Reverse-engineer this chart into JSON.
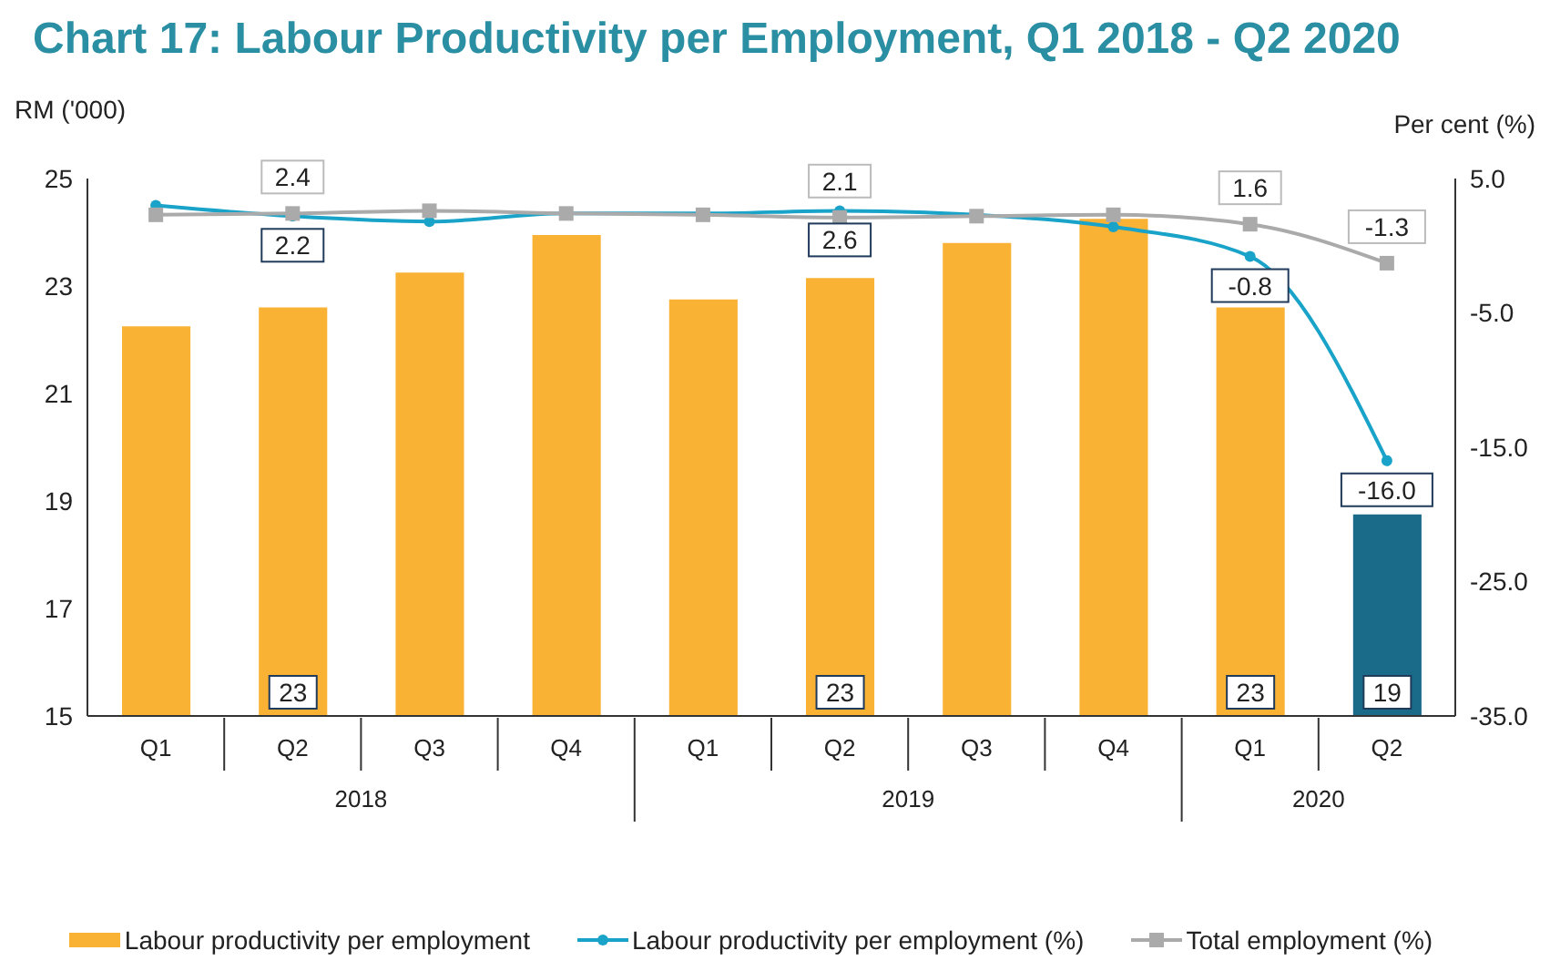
{
  "chart_data": {
    "type": "bar",
    "title": "Chart 17: Labour Productivity per Employment, Q1 2018 - Q2 2020",
    "ylabel": "RM ('000)",
    "y2label": "Per cent (%)",
    "categories": [
      "Q1",
      "Q2",
      "Q3",
      "Q4",
      "Q1",
      "Q2",
      "Q3",
      "Q4",
      "Q1",
      "Q2"
    ],
    "annotations": [
      "2018",
      "2019",
      "2020"
    ],
    "series": [
      {
        "name": "Labour productivity per employment",
        "color": "#f9b234",
        "colors": [
          "#f9b234",
          "#f9b234",
          "#f9b234",
          "#f9b234",
          "#f9b234",
          "#f9b234",
          "#f9b234",
          "#f9b234",
          "#f9b234",
          "#1a6b8a"
        ],
        "values": [
          22.25,
          22.6,
          23.25,
          23.95,
          22.75,
          23.15,
          23.8,
          24.25,
          22.6,
          18.75
        ],
        "value_labels": [
          null,
          "23",
          null,
          null,
          null,
          "23",
          null,
          null,
          "23",
          "19"
        ]
      },
      {
        "name": "Labour productivity per employment (%)",
        "type": "line",
        "axis": "y2",
        "color": "#1aa3c8",
        "marker": "circle",
        "values": [
          3.0,
          2.2,
          1.8,
          2.4,
          2.4,
          2.6,
          2.3,
          1.4,
          -0.8,
          -16.0
        ],
        "value_labels": [
          null,
          "2.2",
          null,
          null,
          null,
          "2.6",
          null,
          null,
          "-0.8",
          "-16.0"
        ]
      },
      {
        "name": "Total employment (%)",
        "type": "line",
        "axis": "y2",
        "color": "#aaaaaa",
        "marker": "square",
        "values": [
          2.3,
          2.4,
          2.6,
          2.4,
          2.3,
          2.1,
          2.2,
          2.3,
          1.6,
          -1.3
        ],
        "value_labels": [
          null,
          "2.4",
          null,
          null,
          null,
          "2.1",
          null,
          null,
          "1.6",
          "-1.3"
        ]
      }
    ],
    "ylim": [
      15,
      25
    ],
    "yticks": [
      15,
      17,
      19,
      21,
      23,
      25
    ],
    "y2lim": [
      -35,
      5
    ],
    "y2ticks": [
      {
        "value": 5,
        "label": "5.0"
      },
      {
        "value": -5,
        "label": "-5.0"
      },
      {
        "value": -15,
        "label": "-15.0"
      },
      {
        "value": -25,
        "label": "-25.0"
      },
      {
        "value": -35,
        "label": "-35.0"
      }
    ],
    "legend": "bottom",
    "grid": false
  }
}
